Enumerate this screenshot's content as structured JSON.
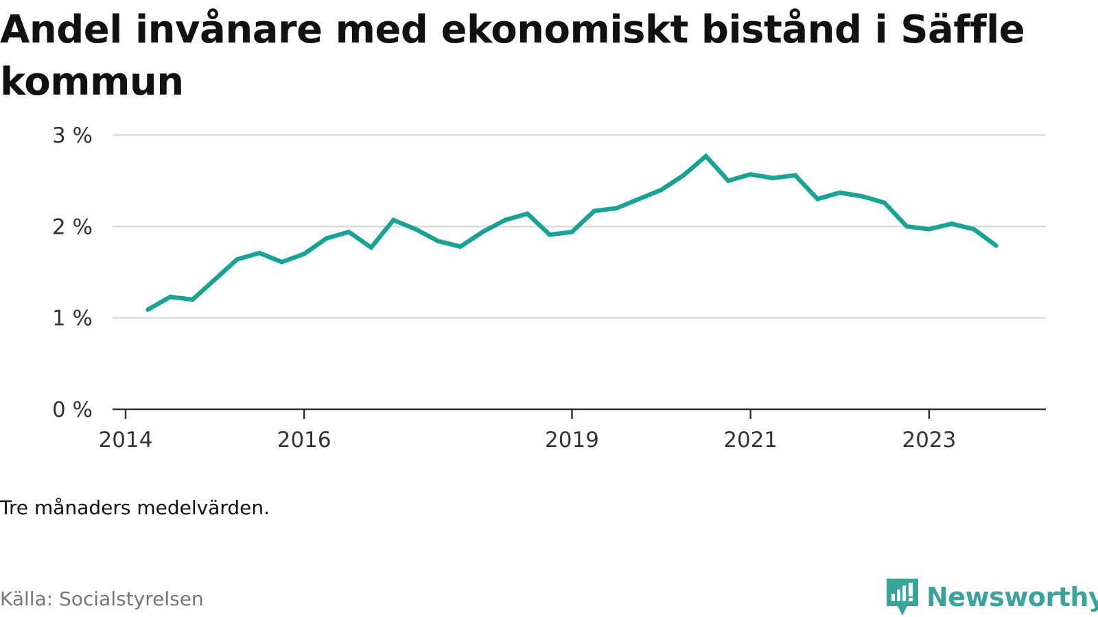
{
  "title": "Andel invånare med ekonomiskt bistånd i Säffle kommun",
  "note": "Tre månaders medelvärden.",
  "source": "Källa: Socialstyrelsen",
  "brand": {
    "name": "Newsworthy",
    "color": "#3aa39b",
    "icon": "newsworthy-logo-icon"
  },
  "colors": {
    "line": "#1aa394",
    "grid": "#dddddd",
    "axis": "#333333"
  },
  "chart_data": {
    "type": "line",
    "x_ticks": [
      "2014",
      "2016",
      "2019",
      "2021",
      "2023"
    ],
    "y_ticks": [
      "0 %",
      "1 %",
      "2 %",
      "3 %"
    ],
    "ylim": [
      0,
      3
    ],
    "x_range": [
      "2014-01",
      "2024-06"
    ],
    "grid": true,
    "series": [
      {
        "x": [
          "2014-04",
          "2014-07",
          "2014-10",
          "2015-01",
          "2015-04",
          "2015-07",
          "2015-10",
          "2016-01",
          "2016-04",
          "2016-07",
          "2016-10",
          "2017-01",
          "2017-04",
          "2017-07",
          "2017-10",
          "2018-01",
          "2018-04",
          "2018-07",
          "2018-10",
          "2019-01",
          "2019-04",
          "2019-07",
          "2019-10",
          "2020-01",
          "2020-04",
          "2020-07",
          "2020-10",
          "2021-01",
          "2021-04",
          "2021-07",
          "2021-10",
          "2022-01",
          "2022-04",
          "2022-07",
          "2022-10",
          "2023-01",
          "2023-04",
          "2023-07",
          "2023-10"
        ],
        "values": [
          1.09,
          1.23,
          1.2,
          1.42,
          1.64,
          1.71,
          1.61,
          1.7,
          1.87,
          1.94,
          1.77,
          2.07,
          1.97,
          1.84,
          1.78,
          1.94,
          2.07,
          2.14,
          1.91,
          1.94,
          2.17,
          2.2,
          2.3,
          2.4,
          2.56,
          2.77,
          2.5,
          2.57,
          2.53,
          2.56,
          2.3,
          2.37,
          2.33,
          2.26,
          2.0,
          1.97,
          2.03,
          1.97,
          1.79
        ]
      }
    ]
  }
}
